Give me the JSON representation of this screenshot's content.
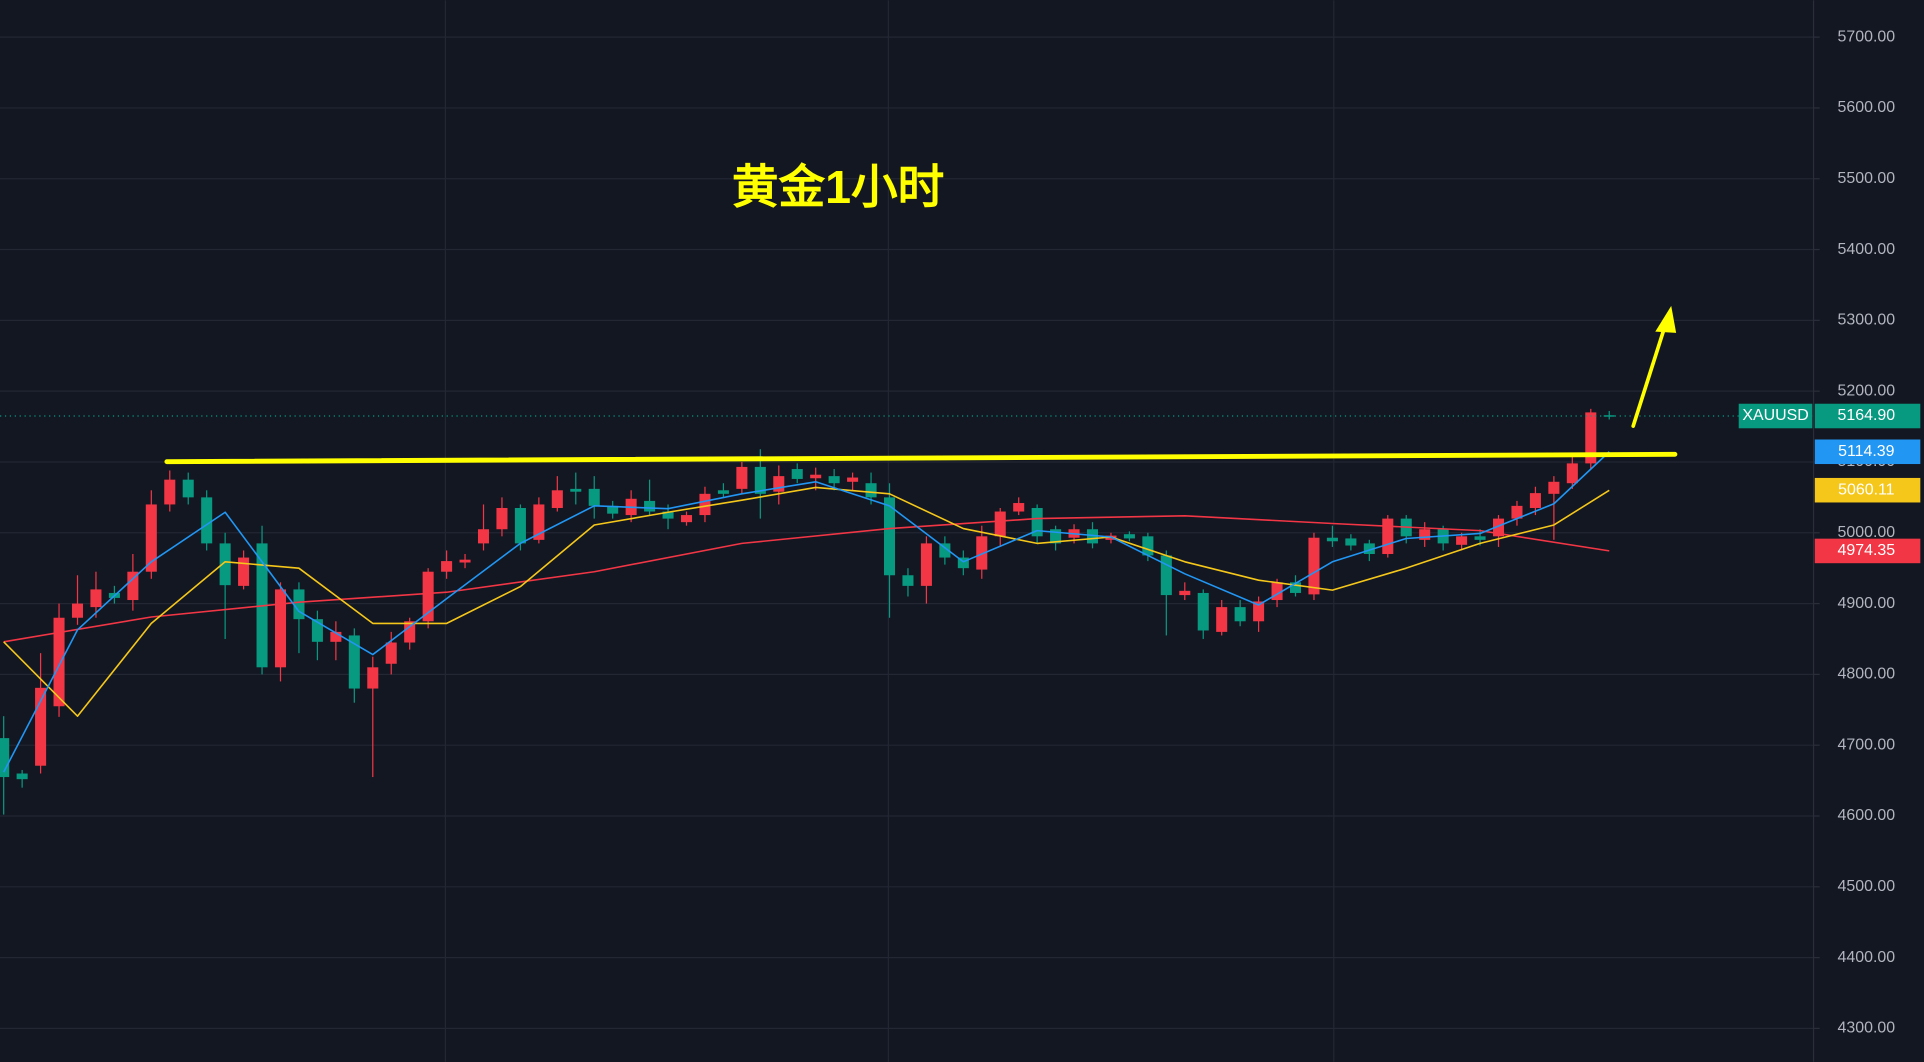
{
  "chart_data": {
    "type": "candlestick",
    "title": "黄金1小时",
    "symbol": "XAUUSD",
    "last_label": "5164.90",
    "up_color": "#f23645",
    "down_color": "#089981",
    "ylim": [
      4253,
      5752
    ],
    "yticks": [
      {
        "value": 4300,
        "label": "4300.00"
      },
      {
        "value": 4400,
        "label": "4400.00"
      },
      {
        "value": 4500,
        "label": "4500.00"
      },
      {
        "value": 4600,
        "label": "4600.00"
      },
      {
        "value": 4700,
        "label": "4700.00"
      },
      {
        "value": 4800,
        "label": "4800.00"
      },
      {
        "value": 4900,
        "label": "4900.00"
      },
      {
        "value": 5000,
        "label": "5000.00"
      },
      {
        "value": 5100,
        "label": "5100.00"
      },
      {
        "value": 5200,
        "label": "5200.00"
      },
      {
        "value": 5300,
        "label": "5300.00"
      },
      {
        "value": 5400,
        "label": "5400.00"
      },
      {
        "value": 5500,
        "label": "5500.00"
      },
      {
        "value": 5600,
        "label": "5600.00"
      },
      {
        "value": 5700,
        "label": "5700.00"
      }
    ],
    "grid": true,
    "open": [
      4710,
      4660,
      4671,
      4755,
      4880,
      4895,
      4915,
      4905,
      4945,
      5040,
      5075,
      5050,
      4985,
      4925,
      4985,
      4810,
      4920,
      4878,
      4846,
      4855,
      4780,
      4815,
      4845,
      4875,
      4945,
      4958,
      4985,
      5005,
      5035,
      4990,
      5035,
      5062,
      5062,
      5038,
      5025,
      5045,
      5030,
      5015,
      5025,
      5060,
      5062,
      5093,
      5058,
      5090,
      5077,
      5080,
      5072,
      5070,
      5050,
      4940,
      4925,
      4985,
      4965,
      4948,
      4995,
      5030,
      5035,
      5005,
      4993,
      5005,
      4990,
      4998,
      4995,
      4968,
      4912,
      4915,
      4860,
      4895,
      4875,
      4905,
      4930,
      4913,
      4993,
      4992,
      4985,
      4970,
      5020,
      4990,
      5005,
      4983,
      4995,
      4995,
      5020,
      5035,
      5055,
      5070,
      5098,
      5166
    ],
    "high": [
      4741,
      4665,
      4830,
      4900,
      4940,
      4945,
      4925,
      4970,
      5060,
      5088,
      5085,
      5060,
      5000,
      4975,
      5010,
      4930,
      4930,
      4890,
      4875,
      4865,
      4825,
      4860,
      4880,
      4950,
      4975,
      4970,
      5040,
      5050,
      5040,
      5050,
      5080,
      5085,
      5080,
      5045,
      5060,
      5075,
      5040,
      5030,
      5065,
      5070,
      5100,
      5118,
      5095,
      5098,
      5092,
      5090,
      5085,
      5085,
      5070,
      4950,
      4995,
      4995,
      4975,
      5010,
      5035,
      5050,
      5040,
      5010,
      5012,
      5015,
      5000,
      5002,
      5000,
      4975,
      4930,
      4920,
      4905,
      4905,
      4910,
      4935,
      4940,
      5000,
      5010,
      4998,
      4990,
      5025,
      5025,
      5015,
      5010,
      5000,
      5005,
      5025,
      5045,
      5065,
      5080,
      5110,
      5175,
      5172
    ],
    "low": [
      4602,
      4640,
      4660,
      4740,
      4870,
      4880,
      4900,
      4890,
      4935,
      5030,
      5040,
      4975,
      4850,
      4920,
      4800,
      4790,
      4830,
      4820,
      4820,
      4760,
      4655,
      4800,
      4835,
      4865,
      4935,
      4950,
      4975,
      4995,
      4975,
      4985,
      5030,
      5040,
      5020,
      5020,
      5015,
      5025,
      5005,
      5010,
      5015,
      5050,
      5055,
      5020,
      5040,
      5070,
      5060,
      5060,
      5060,
      5040,
      4880,
      4910,
      4900,
      4955,
      4940,
      4935,
      4980,
      5025,
      4985,
      4975,
      4985,
      4978,
      4985,
      4988,
      4960,
      4855,
      4905,
      4850,
      4855,
      4868,
      4860,
      4895,
      4910,
      4905,
      4980,
      4975,
      4960,
      4965,
      4985,
      4980,
      4975,
      4975,
      4982,
      4980,
      5010,
      5025,
      4990,
      5062,
      5090,
      5160
    ],
    "close": [
      4655,
      4652,
      4781,
      4880,
      4900,
      4920,
      4908,
      4945,
      5040,
      5075,
      5050,
      4985,
      4926,
      4965,
      4810,
      4920,
      4878,
      4846,
      4860,
      4780,
      4810,
      4845,
      4875,
      4945,
      4960,
      4962,
      5005,
      5035,
      4985,
      5040,
      5060,
      5058,
      5038,
      5027,
      5048,
      5030,
      5020,
      5025,
      5055,
      5055,
      5093,
      5055,
      5080,
      5076,
      5082,
      5070,
      5078,
      5050,
      4940,
      4925,
      4985,
      4965,
      4950,
      4995,
      5030,
      5042,
      4995,
      4985,
      5005,
      4985,
      4996,
      4992,
      4968,
      4912,
      4918,
      4862,
      4895,
      4875,
      4903,
      4930,
      4915,
      4993,
      4988,
      4982,
      4970,
      5020,
      4995,
      5005,
      4985,
      4995,
      4990,
      5020,
      5038,
      5056,
      5072,
      5098,
      5170,
      5164.9
    ],
    "series": [
      {
        "color": "#f23645",
        "last_label": "4974.35",
        "x": [
          0,
          8,
          16,
          24,
          32,
          40,
          48,
          56,
          64,
          72,
          80,
          87
        ],
        "values": [
          4846,
          4881,
          4902,
          4916,
          4945,
          4985,
          5006,
          5020,
          5024,
          5013,
          5003,
          4974.35
        ]
      },
      {
        "color": "#f5c71a",
        "last_label": "5060.11",
        "x": [
          0,
          4,
          8,
          12,
          16,
          20,
          24,
          28,
          32,
          36,
          40,
          44,
          48,
          52,
          56,
          60,
          64,
          68,
          72,
          76,
          80,
          84,
          87
        ],
        "values": [
          4846,
          4741,
          4872,
          4959,
          4950,
          4872,
          4872,
          4924,
          5011,
          5029,
          5046,
          5064,
          5055,
          5006,
          4985,
          4994,
          4959,
          4933,
          4919,
          4950,
          4985,
          5011,
          5060.11
        ]
      },
      {
        "color": "#2196f3",
        "last_label": "5114.39",
        "x": [
          0,
          4,
          8,
          12,
          16,
          20,
          24,
          28,
          32,
          36,
          40,
          44,
          48,
          52,
          56,
          60,
          64,
          68,
          72,
          76,
          80,
          84,
          87
        ],
        "values": [
          4662,
          4863,
          4959,
          5029,
          4889,
          4828,
          4907,
          4985,
          5038,
          5034,
          5055,
          5072,
          5038,
          4959,
          5003,
          4994,
          4942,
          4898,
          4959,
          4992,
          4999,
          5041,
          5114.39
        ]
      }
    ]
  }
}
